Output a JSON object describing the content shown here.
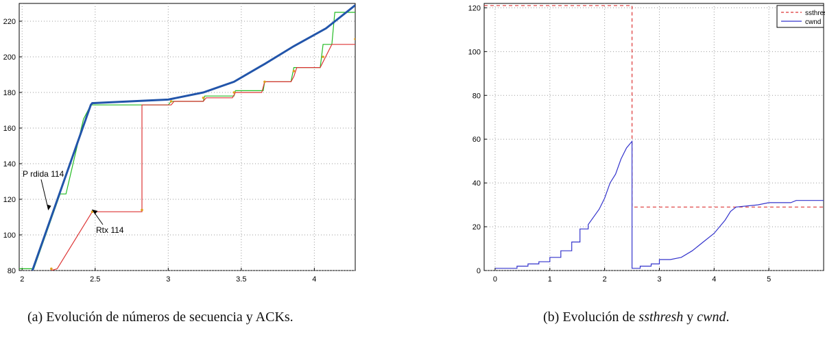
{
  "captions": {
    "a": "(a) Evolución de números de secuencia y ACKs.",
    "b_prefix": "(b) Evolución de ",
    "b_var1": "ssthresh",
    "b_mid": " y ",
    "b_var2": "cwnd",
    "b_end": "."
  },
  "chart_data": [
    {
      "type": "line",
      "title": "",
      "xlabel": "",
      "ylabel": "",
      "xlim": [
        1.98,
        4.28
      ],
      "ylim": [
        80,
        230
      ],
      "xticks": [
        "2",
        "2.5",
        "3",
        "3.5",
        "4"
      ],
      "yticks": [
        "80",
        "100",
        "120",
        "140",
        "160",
        "180",
        "200",
        "220"
      ],
      "grid": true,
      "legend": null,
      "annotations": [
        {
          "text": "P  rdida 114",
          "x": 2.18,
          "y": 114
        },
        {
          "text": "Rtx 114",
          "x": 2.47,
          "y": 115
        }
      ],
      "series": [
        {
          "color": "#22bb22",
          "points": [
            [
              1.98,
              81
            ],
            [
              2.08,
              81
            ],
            [
              2.26,
              123
            ],
            [
              2.3,
              123
            ],
            [
              2.42,
              165
            ],
            [
              2.47,
              173
            ],
            [
              3.0,
              173
            ],
            [
              3.02,
              175
            ],
            [
              3.24,
              175
            ],
            [
              3.25,
              178
            ],
            [
              3.45,
              178
            ],
            [
              3.46,
              181
            ],
            [
              3.65,
              181
            ],
            [
              3.66,
              186
            ],
            [
              3.84,
              186
            ],
            [
              3.86,
              194
            ],
            [
              4.04,
              194
            ],
            [
              4.06,
              207
            ],
            [
              4.12,
              207
            ],
            [
              4.14,
              225
            ],
            [
              4.28,
              225
            ]
          ]
        },
        {
          "color": "#dd3333",
          "points": [
            [
              2.2,
              80
            ],
            [
              2.24,
              81
            ],
            [
              2.48,
              113
            ],
            [
              2.82,
              113
            ],
            [
              2.82,
              173
            ],
            [
              3.02,
              173
            ],
            [
              3.04,
              175
            ],
            [
              3.24,
              175
            ],
            [
              3.26,
              177
            ],
            [
              3.44,
              177
            ],
            [
              3.46,
              180
            ],
            [
              3.64,
              180
            ],
            [
              3.66,
              186
            ],
            [
              3.84,
              186
            ],
            [
              3.86,
              189
            ],
            [
              3.88,
              194
            ],
            [
              4.04,
              194
            ],
            [
              4.12,
              207
            ],
            [
              4.28,
              207
            ]
          ]
        },
        {
          "color": "#2255aa",
          "points": [
            [
              2.07,
              80
            ],
            [
              2.47,
              173
            ],
            [
              2.48,
              174
            ],
            [
              3.0,
              176
            ],
            [
              3.24,
              180
            ],
            [
              3.45,
              186
            ],
            [
              3.66,
              196
            ],
            [
              3.86,
              206
            ],
            [
              4.08,
              216
            ],
            [
              4.28,
              229
            ]
          ]
        }
      ],
      "acks": [
        [
          2.2,
          81
        ],
        [
          2.48,
          113
        ],
        [
          2.82,
          114
        ],
        [
          3.02,
          175
        ],
        [
          3.24,
          177
        ],
        [
          3.45,
          180
        ],
        [
          3.66,
          186
        ],
        [
          3.86,
          192
        ],
        [
          4.06,
          200
        ],
        [
          4.28,
          210
        ]
      ]
    },
    {
      "type": "line",
      "title": "",
      "xlabel": "",
      "ylabel": "",
      "xlim": [
        -0.2,
        6.0
      ],
      "ylim": [
        0,
        122
      ],
      "xticks": [
        "0",
        "1",
        "2",
        "3",
        "4",
        "5"
      ],
      "yticks": [
        "0",
        "20",
        "40",
        "60",
        "80",
        "100",
        "120"
      ],
      "grid": true,
      "legend": {
        "position": "top-right",
        "entries": [
          "ssthresh",
          "cwnd"
        ]
      },
      "series": [
        {
          "name": "ssthresh",
          "color": "#dd3333",
          "dashed": true,
          "points": [
            [
              -0.2,
              121
            ],
            [
              2.5,
              121
            ],
            [
              2.5,
              29
            ],
            [
              6.0,
              29
            ]
          ]
        },
        {
          "name": "cwnd",
          "color": "#3333cc",
          "dashed": false,
          "points": [
            [
              0,
              1
            ],
            [
              0.4,
              1
            ],
            [
              0.4,
              2
            ],
            [
              0.6,
              2
            ],
            [
              0.6,
              3
            ],
            [
              0.8,
              3
            ],
            [
              0.8,
              4
            ],
            [
              1.0,
              4
            ],
            [
              1.0,
              6
            ],
            [
              1.2,
              6
            ],
            [
              1.2,
              9
            ],
            [
              1.4,
              9
            ],
            [
              1.4,
              13
            ],
            [
              1.55,
              13
            ],
            [
              1.55,
              19
            ],
            [
              1.7,
              19
            ],
            [
              1.7,
              21
            ],
            [
              1.9,
              28
            ],
            [
              2.0,
              33
            ],
            [
              2.1,
              40
            ],
            [
              2.2,
              44
            ],
            [
              2.3,
              51
            ],
            [
              2.4,
              56
            ],
            [
              2.5,
              59
            ],
            [
              2.5,
              1
            ],
            [
              2.65,
              1
            ],
            [
              2.65,
              2
            ],
            [
              2.85,
              2
            ],
            [
              2.85,
              3
            ],
            [
              3.0,
              3
            ],
            [
              3.0,
              5
            ],
            [
              3.2,
              5
            ],
            [
              3.4,
              6
            ],
            [
              3.6,
              9
            ],
            [
              3.8,
              13
            ],
            [
              4.0,
              17
            ],
            [
              4.2,
              23
            ],
            [
              4.3,
              27
            ],
            [
              4.4,
              29
            ],
            [
              4.8,
              30
            ],
            [
              5.0,
              31
            ],
            [
              5.4,
              31
            ],
            [
              5.5,
              32
            ],
            [
              6.0,
              32
            ]
          ]
        }
      ]
    }
  ]
}
